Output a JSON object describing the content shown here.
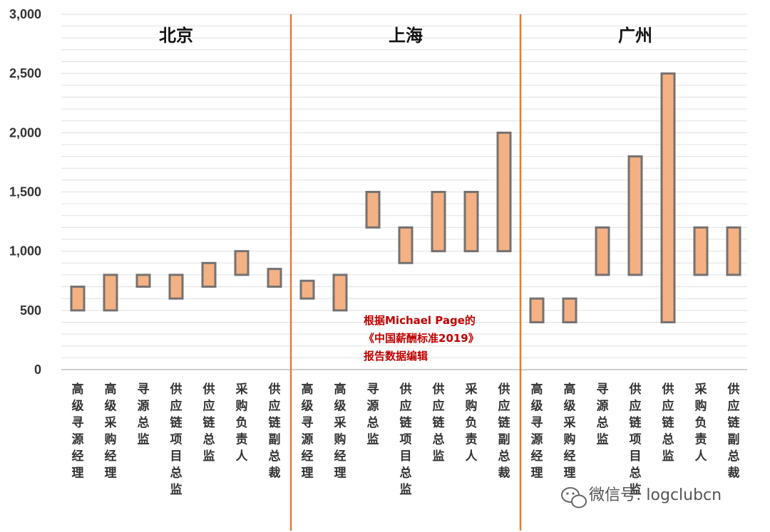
{
  "chart_data": {
    "type": "floating-bar",
    "ylim": [
      0,
      3000
    ],
    "yticks": [
      "0",
      "500",
      "1,000",
      "1,500",
      "2,000",
      "2,500",
      "3,000"
    ],
    "ytick_values": [
      0,
      500,
      1000,
      1500,
      2000,
      2500,
      3000
    ],
    "grid": true,
    "colors": {
      "bar_fill": "#f4b183",
      "bar_stroke": "#757171",
      "divider": "#e07b39",
      "grid": "#e0e0e0",
      "note": "#c00000"
    },
    "groups": [
      {
        "name": "北京",
        "categories": [
          "高级寻源经理",
          "高级采购经理",
          "寻源总监",
          "供应链项目总监",
          "供应链总监",
          "采购负责人",
          "供应链副总裁"
        ],
        "ranges": [
          [
            500,
            700
          ],
          [
            500,
            800
          ],
          [
            700,
            800
          ],
          [
            600,
            800
          ],
          [
            700,
            900
          ],
          [
            800,
            1000
          ],
          [
            700,
            850
          ]
        ]
      },
      {
        "name": "上海",
        "categories": [
          "高级寻源经理",
          "高级采购经理",
          "寻源总监",
          "供应链项目总监",
          "供应链总监",
          "采购负责人",
          "供应链副总裁"
        ],
        "ranges": [
          [
            600,
            750
          ],
          [
            500,
            800
          ],
          [
            1200,
            1500
          ],
          [
            900,
            1200
          ],
          [
            1000,
            1500
          ],
          [
            1000,
            1500
          ],
          [
            1000,
            2000
          ]
        ]
      },
      {
        "name": "广州",
        "categories": [
          "高级寻源经理",
          "高级采购经理",
          "寻源总监",
          "供应链项目总监",
          "供应链总监",
          "采购负责人",
          "供应链副总裁"
        ],
        "ranges": [
          [
            400,
            600
          ],
          [
            400,
            600
          ],
          [
            800,
            1200
          ],
          [
            800,
            1800
          ],
          [
            400,
            2500
          ],
          [
            800,
            1200
          ],
          [
            800,
            1200
          ]
        ]
      }
    ],
    "annotation": [
      "根据Michael Page的",
      "《中国薪酬标准2019》",
      "报告数据编辑"
    ]
  },
  "watermark": {
    "text": "微信号: logclubcn",
    "icon": "wechat-icon"
  }
}
